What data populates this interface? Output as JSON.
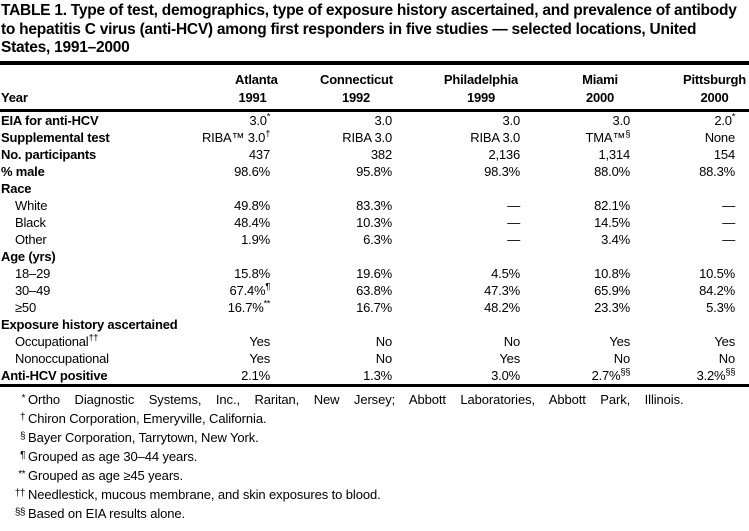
{
  "page": {
    "title": "TABLE 1. Type of test, demographics, type of exposure history ascertained, and prevalence of antibody to hepatitis C virus (anti-HCV) among first responders in five studies — selected locations, United States, 1991–2000"
  },
  "table": {
    "corner_label": "Year",
    "columns": [
      {
        "city": "Atlanta",
        "year": "1991"
      },
      {
        "city": "Connecticut",
        "year": "1992"
      },
      {
        "city": "Philadelphia",
        "year": "1999"
      },
      {
        "city": "Miami",
        "year": "2000"
      },
      {
        "city": "Pittsburgh",
        "year": "2000"
      }
    ],
    "rows": [
      {
        "label": "EIA for anti-HCV",
        "bold": true,
        "indent": false,
        "values": [
          "3.0^{*}",
          "3.0",
          "3.0",
          "3.0",
          "2.0^{*}"
        ]
      },
      {
        "label": "Supplemental test",
        "bold": true,
        "indent": false,
        "values": [
          "RIBA™ 3.0^{†}",
          "RIBA 3.0",
          "RIBA 3.0",
          "TMA™^{§}",
          "None"
        ]
      },
      {
        "label": "No. participants",
        "bold": true,
        "indent": false,
        "values": [
          "437",
          "382",
          "2,136",
          "1,314",
          "154"
        ]
      },
      {
        "label": "% male",
        "bold": true,
        "indent": false,
        "values": [
          "98.6%",
          "95.8%",
          "98.3%",
          "88.0%",
          "88.3%"
        ]
      },
      {
        "label": "Race",
        "bold": true,
        "indent": false,
        "values": [
          "",
          "",
          "",
          "",
          ""
        ]
      },
      {
        "label": "White",
        "bold": false,
        "indent": true,
        "values": [
          "49.8%",
          "83.3%",
          "—",
          "82.1%",
          "—"
        ]
      },
      {
        "label": "Black",
        "bold": false,
        "indent": true,
        "values": [
          "48.4%",
          "10.3%",
          "—",
          "14.5%",
          "—"
        ]
      },
      {
        "label": "Other",
        "bold": false,
        "indent": true,
        "values": [
          "1.9%",
          "6.3%",
          "—",
          "3.4%",
          "—"
        ]
      },
      {
        "label": "Age (yrs)",
        "bold": true,
        "indent": false,
        "values": [
          "",
          "",
          "",
          "",
          ""
        ]
      },
      {
        "label": "18–29",
        "bold": false,
        "indent": true,
        "values": [
          "15.8%",
          "19.6%",
          "4.5%",
          "10.8%",
          "10.5%"
        ]
      },
      {
        "label": "30–49",
        "bold": false,
        "indent": true,
        "values": [
          "67.4%^{¶}",
          "63.8%",
          "47.3%",
          "65.9%",
          "84.2%"
        ]
      },
      {
        "label": "≥50",
        "bold": false,
        "indent": true,
        "values": [
          "16.7%^{**}",
          "16.7%",
          "48.2%",
          "23.3%",
          "5.3%"
        ]
      },
      {
        "label": "Exposure history ascertained",
        "bold": true,
        "indent": false,
        "values": [
          "",
          "",
          "",
          "",
          ""
        ]
      },
      {
        "label": "Occupational^{††}",
        "bold": false,
        "indent": true,
        "values": [
          "Yes",
          "No",
          "No",
          "Yes",
          "Yes"
        ]
      },
      {
        "label": "Nonoccupational",
        "bold": false,
        "indent": true,
        "values": [
          "Yes",
          "No",
          "Yes",
          "No",
          "No"
        ]
      },
      {
        "label": "Anti-HCV positive",
        "bold": true,
        "indent": false,
        "values": [
          "2.1%",
          "1.3%",
          "3.0%",
          "2.7%^{§§}",
          "3.2%^{§§}"
        ]
      }
    ]
  },
  "footnotes": [
    {
      "marker": "*",
      "text": "Ortho Diagnostic Systems, Inc., Raritan, New Jersey; Abbott Laboratories, Abbott Park, Illinois."
    },
    {
      "marker": "†",
      "text": "Chiron Corporation, Emeryville, California."
    },
    {
      "marker": "§",
      "text": "Bayer Corporation, Tarrytown, New York."
    },
    {
      "marker": "¶",
      "text": "Grouped as age 30–44 years."
    },
    {
      "marker": "**",
      "text": "Grouped as age ≥45 years."
    },
    {
      "marker": "††",
      "text": "Needlestick, mucous membrane, and skin exposures to blood."
    },
    {
      "marker": "§§",
      "text": "Based on EIA results alone."
    }
  ]
}
